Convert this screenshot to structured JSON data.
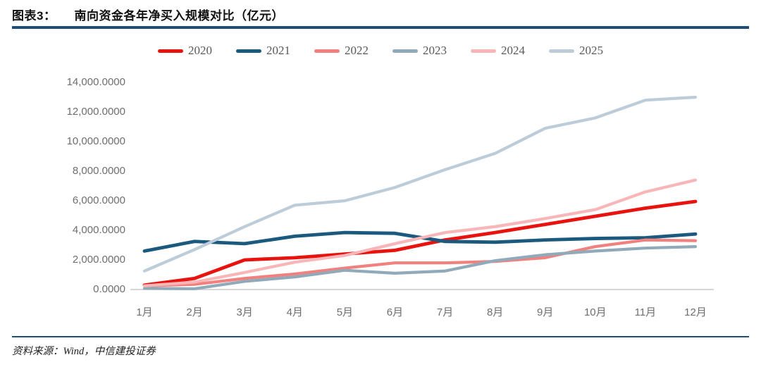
{
  "header": {
    "figure_label": "图表3：",
    "title": "南向资金各年净买入规模对比（亿元）"
  },
  "footer": {
    "source": "资料来源：Wind，中信建投证券"
  },
  "colors": {
    "rule_blue": "#1f4e79",
    "axis_line": "#c9c9c9",
    "axis_text": "#6e6e6e",
    "legend_text": "#595959"
  },
  "chart_data": {
    "type": "line",
    "title": "南向资金各年净买入规模对比（亿元）",
    "categories": [
      "1月",
      "2月",
      "3月",
      "4月",
      "5月",
      "6月",
      "7月",
      "8月",
      "9月",
      "10月",
      "11月",
      "12月"
    ],
    "ylim": [
      0,
      14000
    ],
    "grid": false,
    "legend_position": "top-center",
    "yticks": [
      {
        "label": "14,000.0000",
        "value": 14000
      },
      {
        "label": "12,000.0000",
        "value": 12000
      },
      {
        "label": "10,000.0000",
        "value": 10000
      },
      {
        "label": "8,000.0000",
        "value": 8000
      },
      {
        "label": "6,000.0000",
        "value": 6000
      },
      {
        "label": "4,000.0000",
        "value": 4000
      },
      {
        "label": "2,000.0000",
        "value": 2000
      },
      {
        "label": "0.0000",
        "value": 0
      }
    ],
    "series": [
      {
        "name": "2020",
        "color": "#e8120f",
        "values": [
          300,
          750,
          2000,
          2150,
          2400,
          2650,
          3350,
          3850,
          4400,
          4950,
          5500,
          5950
        ]
      },
      {
        "name": "2021",
        "color": "#1b5a7e",
        "values": [
          2600,
          3250,
          3100,
          3600,
          3850,
          3800,
          3250,
          3200,
          3350,
          3450,
          3500,
          3750
        ]
      },
      {
        "name": "2022",
        "color": "#f0817f",
        "values": [
          250,
          350,
          750,
          1050,
          1450,
          1800,
          1800,
          1900,
          2150,
          2900,
          3350,
          3300
        ]
      },
      {
        "name": "2023",
        "color": "#90aaba",
        "values": [
          80,
          50,
          550,
          850,
          1300,
          1100,
          1250,
          1950,
          2350,
          2600,
          2800,
          2900
        ]
      },
      {
        "name": "2024",
        "color": "#f8b6b8",
        "values": [
          250,
          500,
          1150,
          1850,
          2300,
          3100,
          3850,
          4250,
          4800,
          5400,
          6600,
          7400
        ]
      },
      {
        "name": "2025",
        "color": "#bcccd8",
        "values": [
          1250,
          2700,
          4250,
          5700,
          6000,
          6900,
          8100,
          9200,
          10900,
          11600,
          12800,
          13000
        ]
      }
    ]
  }
}
